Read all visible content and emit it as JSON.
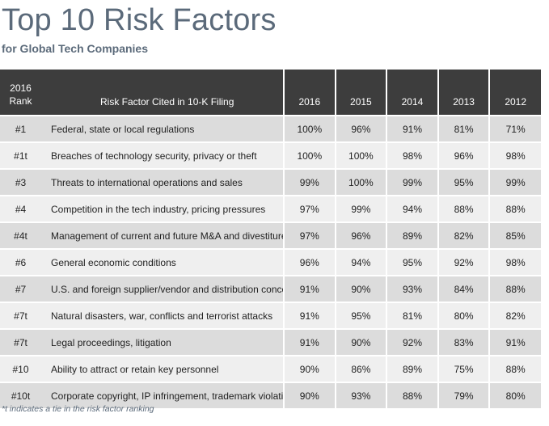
{
  "title": "Top 10 Risk Factors",
  "subtitle": "for Global Tech Companies",
  "footnote": "*t indicates a tie in the risk factor ranking",
  "colors": {
    "title_text": "#5b6a7a",
    "header_bg": "#3d3d3d",
    "row_odd": "#dcdcdc",
    "row_even": "#efefef"
  },
  "chart_data": {
    "type": "table",
    "title": "Top 10 Risk Factors",
    "subtitle": "for Global Tech Companies",
    "columns": {
      "rank": "2016 Rank",
      "rank_line1": "2016",
      "rank_line2": "Rank",
      "factor": "Risk Factor Cited in 10-K Filing",
      "years": [
        "2016",
        "2015",
        "2014",
        "2013",
        "2012"
      ]
    },
    "rows": [
      {
        "rank": "#1",
        "factor": "Federal, state or local regulations",
        "values": [
          "100%",
          "96%",
          "91%",
          "81%",
          "71%"
        ]
      },
      {
        "rank": "#1t",
        "factor": "Breaches of technology security, privacy or theft",
        "values": [
          "100%",
          "100%",
          "98%",
          "96%",
          "98%"
        ]
      },
      {
        "rank": "#3",
        "factor": "Threats to international operations and sales",
        "values": [
          "99%",
          "100%",
          "99%",
          "95%",
          "99%"
        ]
      },
      {
        "rank": "#4",
        "factor": "Competition in the tech industry, pricing pressures",
        "values": [
          "97%",
          "99%",
          "94%",
          "88%",
          "88%"
        ]
      },
      {
        "rank": "#4t",
        "factor": "Management of current and future M&A and divestitures",
        "values": [
          "97%",
          "96%",
          "89%",
          "82%",
          "85%"
        ]
      },
      {
        "rank": "#6",
        "factor": "General economic conditions",
        "values": [
          "96%",
          "94%",
          "95%",
          "92%",
          "98%"
        ]
      },
      {
        "rank": "#7",
        "factor": "U.S. and foreign supplier/vendor and distribution concerns",
        "values": [
          "91%",
          "90%",
          "93%",
          "84%",
          "88%"
        ]
      },
      {
        "rank": "#7t",
        "factor": "Natural disasters, war, conflicts and terrorist attacks",
        "values": [
          "91%",
          "95%",
          "81%",
          "80%",
          "82%"
        ]
      },
      {
        "rank": "#7t",
        "factor": "Legal proceedings, litigation",
        "values": [
          "91%",
          "90%",
          "92%",
          "83%",
          "91%"
        ]
      },
      {
        "rank": "#10",
        "factor": "Ability to attract or retain key personnel",
        "values": [
          "90%",
          "86%",
          "89%",
          "75%",
          "88%"
        ]
      },
      {
        "rank": "#10t",
        "factor": "Corporate copyright, IP infringement, trademark violations",
        "values": [
          "90%",
          "93%",
          "88%",
          "79%",
          "80%"
        ]
      }
    ]
  }
}
